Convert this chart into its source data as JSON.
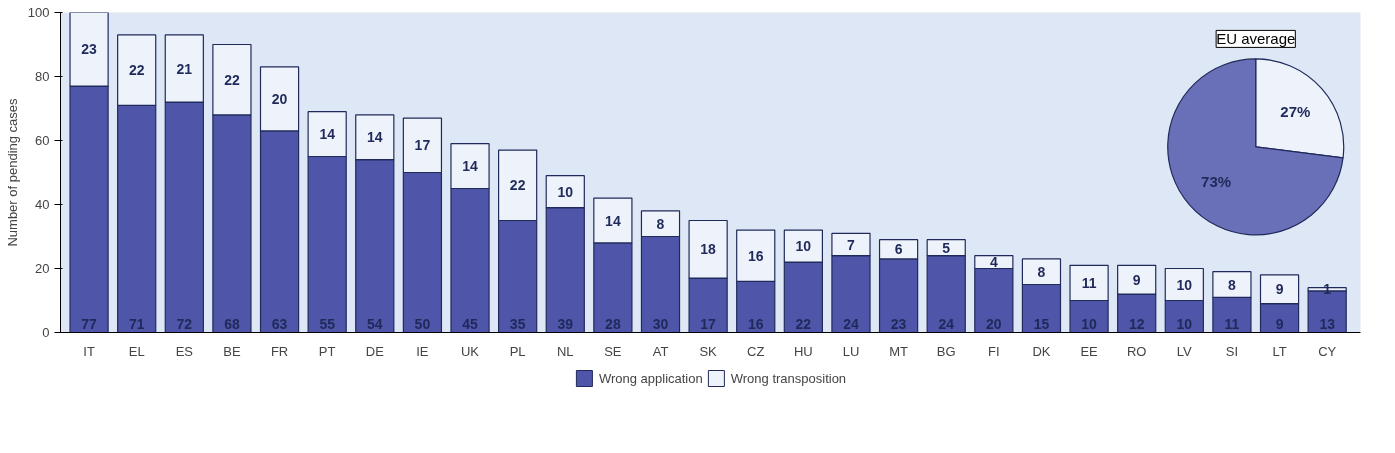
{
  "chart_data": [
    {
      "type": "bar",
      "stacked": true,
      "ylabel": "Number of pending cases",
      "categories": [
        "IT",
        "EL",
        "ES",
        "BE",
        "FR",
        "PT",
        "DE",
        "IE",
        "UK",
        "PL",
        "NL",
        "SE",
        "AT",
        "SK",
        "CZ",
        "HU",
        "LU",
        "MT",
        "BG",
        "FI",
        "DK",
        "EE",
        "RO",
        "LV",
        "SI",
        "LT",
        "CY"
      ],
      "series": [
        {
          "name": "Wrong application",
          "color": "#4f55a8",
          "values": [
            77,
            71,
            72,
            68,
            63,
            55,
            54,
            50,
            45,
            35,
            39,
            28,
            30,
            17,
            16,
            22,
            24,
            23,
            24,
            20,
            15,
            10,
            12,
            10,
            11,
            9,
            13
          ]
        },
        {
          "name": "Wrong transposition",
          "color": "#eef2fb",
          "values": [
            23,
            22,
            21,
            22,
            20,
            14,
            14,
            17,
            14,
            22,
            10,
            14,
            8,
            18,
            16,
            10,
            7,
            6,
            5,
            4,
            8,
            11,
            9,
            10,
            8,
            9,
            1
          ]
        }
      ],
      "ylim": [
        0,
        100
      ],
      "yticks": [
        0,
        20,
        40,
        60,
        80,
        100
      ],
      "grid": false,
      "legend": "bottom",
      "data_labels": true
    },
    {
      "type": "pie",
      "title": "EU average",
      "categories": [
        null,
        null
      ],
      "values": [
        27,
        73
      ],
      "colors": [
        "#eef2fb",
        "#6a70b8"
      ],
      "value_labels": [
        "27%",
        "73%"
      ]
    }
  ]
}
